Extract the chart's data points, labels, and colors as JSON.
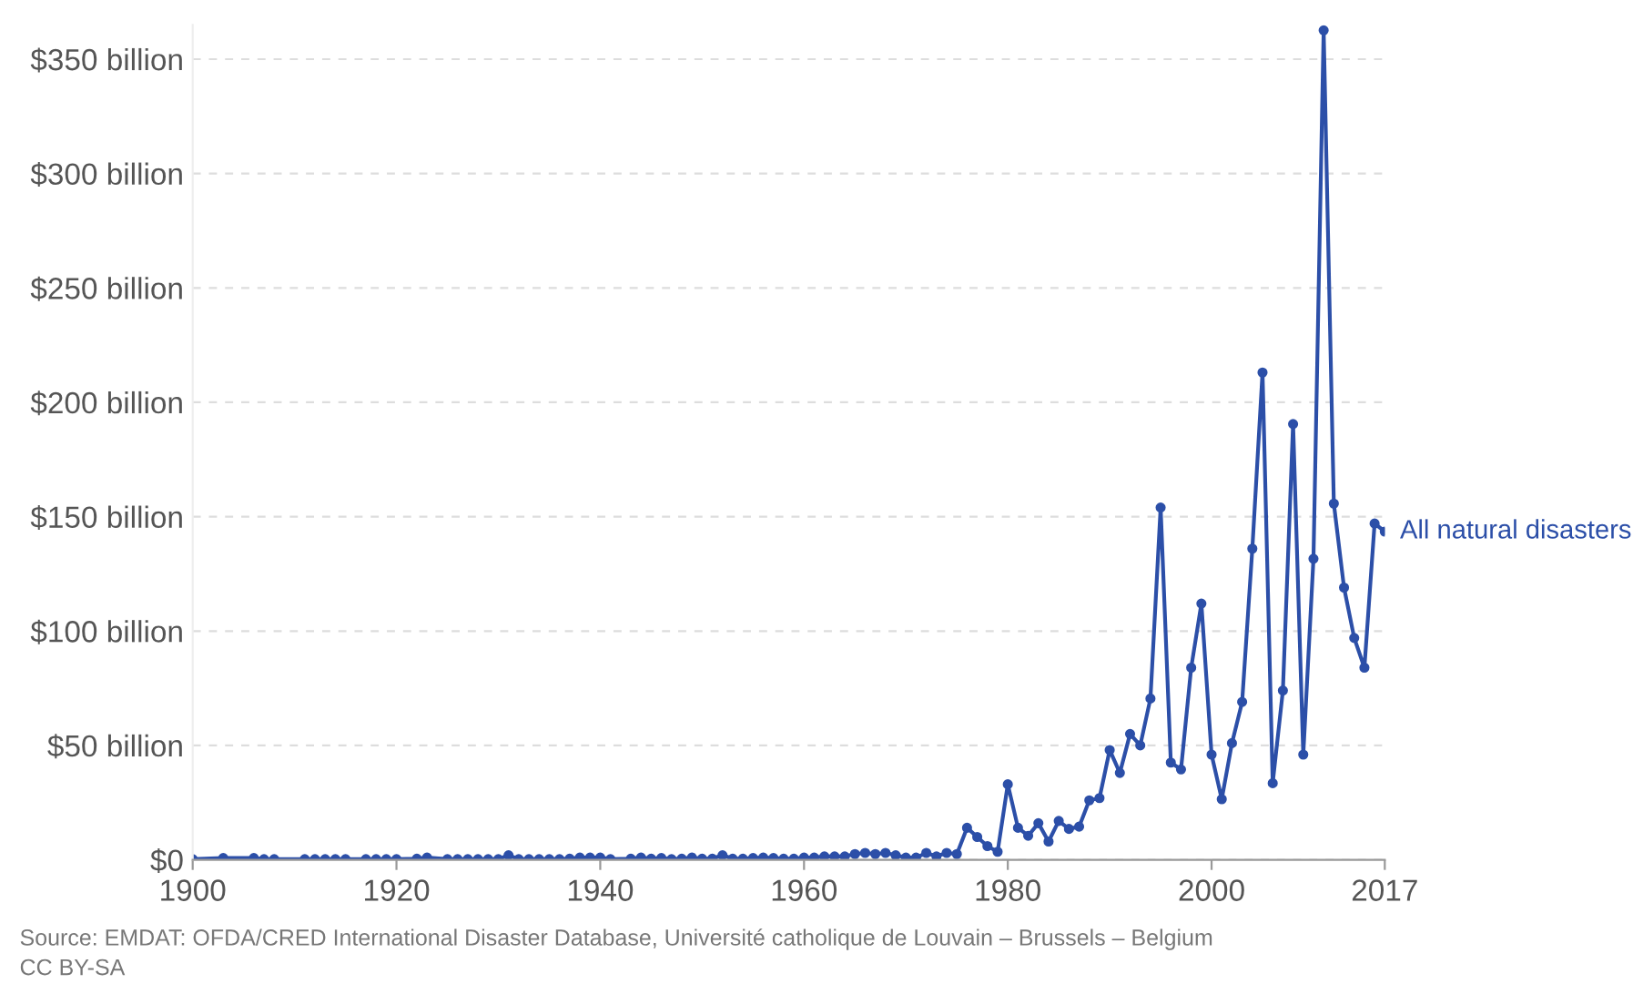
{
  "chart_data": {
    "type": "line",
    "x": [
      1900,
      1903,
      1906,
      1907,
      1908,
      1911,
      1912,
      1913,
      1914,
      1915,
      1917,
      1918,
      1919,
      1920,
      1922,
      1923,
      1925,
      1926,
      1927,
      1928,
      1929,
      1930,
      1931,
      1932,
      1933,
      1934,
      1935,
      1936,
      1937,
      1938,
      1939,
      1940,
      1941,
      1943,
      1944,
      1945,
      1946,
      1947,
      1948,
      1949,
      1950,
      1951,
      1952,
      1953,
      1954,
      1955,
      1956,
      1957,
      1958,
      1959,
      1960,
      1961,
      1962,
      1963,
      1964,
      1965,
      1966,
      1967,
      1968,
      1969,
      1970,
      1971,
      1972,
      1973,
      1974,
      1975,
      1976,
      1977,
      1978,
      1979,
      1980,
      1981,
      1982,
      1983,
      1984,
      1985,
      1986,
      1987,
      1988,
      1989,
      1990,
      1991,
      1992,
      1993,
      1994,
      1995,
      1996,
      1997,
      1998,
      1999,
      2000,
      2001,
      2002,
      2003,
      2004,
      2005,
      2006,
      2007,
      2008,
      2009,
      2010,
      2011,
      2012,
      2013,
      2014,
      2015,
      2016,
      2017
    ],
    "series": [
      {
        "name": "All natural disasters",
        "color": "#2c4fa8",
        "values": [
          0.3,
          0.8,
          0.8,
          0.3,
          0.3,
          0.3,
          0.3,
          0.3,
          0.3,
          0.3,
          0.3,
          0.3,
          0.3,
          0.3,
          0.5,
          1,
          0.3,
          0.3,
          0.3,
          0.3,
          0.3,
          0.3,
          2,
          0.3,
          0.3,
          0.3,
          0.3,
          0.3,
          0.5,
          1,
          1,
          1,
          0.3,
          0.5,
          1,
          0.5,
          0.8,
          0.3,
          0.5,
          1,
          0.5,
          0.5,
          2,
          0.5,
          0.5,
          0.8,
          1,
          0.8,
          0.5,
          0.5,
          1,
          1,
          1.5,
          1.5,
          1.5,
          2.5,
          3,
          2.5,
          3,
          2,
          1,
          1,
          3,
          1.5,
          3,
          2.5,
          14,
          10,
          6,
          3.5,
          33,
          14,
          10.5,
          16,
          8,
          17,
          13.5,
          14.5,
          26,
          27,
          48,
          38,
          55,
          50,
          70.5,
          154,
          42.5,
          39.5,
          84,
          112,
          46,
          26.5,
          51,
          69,
          136,
          213,
          33.5,
          74,
          190.5,
          46,
          131.6,
          362.6,
          155.7,
          119,
          97,
          84,
          147,
          143.5
        ]
      }
    ],
    "xlim": [
      1900,
      2017
    ],
    "xticks": [
      1900,
      1920,
      1940,
      1960,
      1980,
      2000,
      2017
    ],
    "ylim": [
      0,
      365
    ],
    "yticks": [
      {
        "value": 0,
        "label": "$0"
      },
      {
        "value": 50,
        "label": "$50 billion"
      },
      {
        "value": 100,
        "label": "$100 billion"
      },
      {
        "value": 150,
        "label": "$150 billion"
      },
      {
        "value": 200,
        "label": "$200 billion"
      },
      {
        "value": 250,
        "label": "$250 billion"
      },
      {
        "value": 300,
        "label": "$300 billion"
      },
      {
        "value": 350,
        "label": "$350 billion"
      }
    ],
    "grid": "y",
    "marker": "circle",
    "line_style": "solid",
    "annotations": [
      "Source: EMDAT: OFDA/CRED International Disaster Database, Université catholique de Louvain – Brussels – Belgium",
      "CC BY-SA"
    ]
  }
}
